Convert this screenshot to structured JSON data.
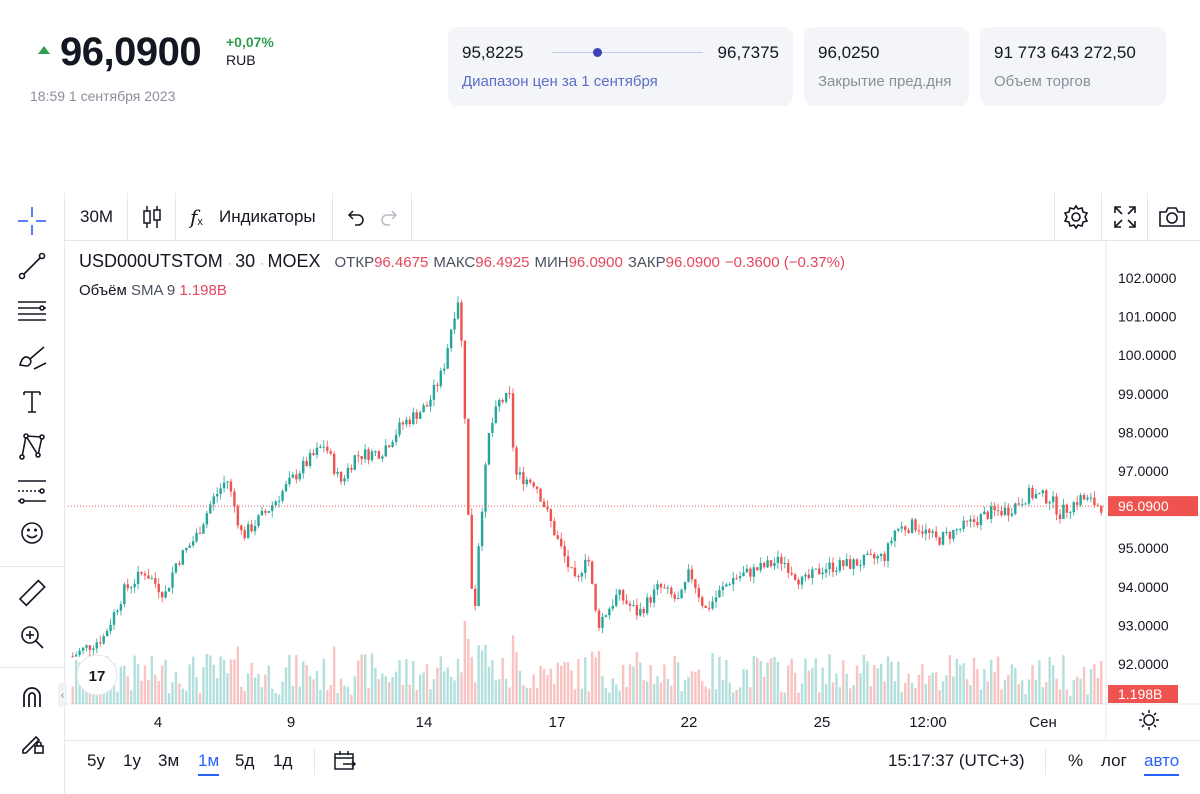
{
  "quote": {
    "price": "96,0900",
    "change": "+0,07%",
    "currency": "RUB",
    "timestamp": "18:59 1 сентября 2023",
    "up_color": "#2e9e4f"
  },
  "range": {
    "low": "95,8225",
    "high": "96,7375",
    "label": "Диапазон цен за 1 сентября",
    "position": 0.3
  },
  "prev_close": {
    "value": "96,0250",
    "label": "Закрытие пред.дня"
  },
  "volume_card": {
    "value": "91 773 643 272,50",
    "label": "Объем торгов"
  },
  "toolbar": {
    "interval": "30M",
    "indicators": "Индикаторы",
    "left_tools": [
      "crosshair-icon",
      "trend-line-icon",
      "fib-icon",
      "brush-icon",
      "text-icon",
      "pattern-icon",
      "projection-icon",
      "emoji-icon",
      "ruler-icon",
      "zoom-in-icon",
      "magnet-icon",
      "lock-draw-icon"
    ]
  },
  "legend": {
    "symbol": "USD000UTSTOM",
    "interval": "30",
    "exchange": "MOEX",
    "open_label": "ОТКР",
    "open": "96.4675",
    "high_label": "МАКС",
    "high": "96.4925",
    "low_label": "МИН",
    "low": "96.0900",
    "close_label": "ЗАКР",
    "close": "96.0900",
    "change": "−0.3600 (−0.37%)",
    "volume_label": "Объём",
    "sma": "SMA 9",
    "volume_value": "1.198B"
  },
  "chart_data": {
    "type": "candlestick",
    "y_ticks": [
      "102.0000",
      "101.0000",
      "100.0000",
      "99.0000",
      "98.0000",
      "97.0000",
      "96.0000",
      "95.0000",
      "94.0000",
      "93.0000",
      "92.0000"
    ],
    "ylim": [
      91.0,
      102.6
    ],
    "x_ticks": [
      "4",
      "9",
      "14",
      "17",
      "22",
      "25",
      "12:00",
      "Сен"
    ],
    "last_price_label": "96.0900",
    "volume_label": "1.198B",
    "up_color": "#26a69a",
    "down_color": "#ef5350",
    "close_path": [
      {
        "t": 0.0,
        "p": 92.2
      },
      {
        "t": 0.03,
        "p": 92.7
      },
      {
        "t": 0.05,
        "p": 93.9
      },
      {
        "t": 0.07,
        "p": 94.4
      },
      {
        "t": 0.09,
        "p": 93.8
      },
      {
        "t": 0.1,
        "p": 94.6
      },
      {
        "t": 0.12,
        "p": 95.3
      },
      {
        "t": 0.135,
        "p": 96.2
      },
      {
        "t": 0.15,
        "p": 96.8
      },
      {
        "t": 0.165,
        "p": 95.3
      },
      {
        "t": 0.19,
        "p": 96.0
      },
      {
        "t": 0.22,
        "p": 97.0
      },
      {
        "t": 0.245,
        "p": 97.7
      },
      {
        "t": 0.26,
        "p": 96.7
      },
      {
        "t": 0.275,
        "p": 97.4
      },
      {
        "t": 0.3,
        "p": 97.5
      },
      {
        "t": 0.32,
        "p": 98.2
      },
      {
        "t": 0.345,
        "p": 98.7
      },
      {
        "t": 0.36,
        "p": 99.6
      },
      {
        "t": 0.37,
        "p": 101.0
      },
      {
        "t": 0.375,
        "p": 101.5
      },
      {
        "t": 0.38,
        "p": 99.5
      },
      {
        "t": 0.385,
        "p": 95.5
      },
      {
        "t": 0.39,
        "p": 93.0
      },
      {
        "t": 0.395,
        "p": 95.3
      },
      {
        "t": 0.405,
        "p": 98.0
      },
      {
        "t": 0.415,
        "p": 98.8
      },
      {
        "t": 0.425,
        "p": 98.9
      },
      {
        "t": 0.43,
        "p": 96.9
      },
      {
        "t": 0.45,
        "p": 96.7
      },
      {
        "t": 0.47,
        "p": 95.3
      },
      {
        "t": 0.49,
        "p": 94.0
      },
      {
        "t": 0.5,
        "p": 95.0
      },
      {
        "t": 0.51,
        "p": 93.0
      },
      {
        "t": 0.53,
        "p": 93.8
      },
      {
        "t": 0.55,
        "p": 93.3
      },
      {
        "t": 0.57,
        "p": 94.0
      },
      {
        "t": 0.59,
        "p": 93.6
      },
      {
        "t": 0.6,
        "p": 94.4
      },
      {
        "t": 0.615,
        "p": 93.4
      },
      {
        "t": 0.64,
        "p": 94.2
      },
      {
        "t": 0.67,
        "p": 94.5
      },
      {
        "t": 0.69,
        "p": 94.7
      },
      {
        "t": 0.71,
        "p": 94.1
      },
      {
        "t": 0.73,
        "p": 94.5
      },
      {
        "t": 0.76,
        "p": 94.6
      },
      {
        "t": 0.79,
        "p": 94.8
      },
      {
        "t": 0.8,
        "p": 95.5
      },
      {
        "t": 0.82,
        "p": 95.6
      },
      {
        "t": 0.84,
        "p": 95.2
      },
      {
        "t": 0.87,
        "p": 95.6
      },
      {
        "t": 0.89,
        "p": 95.9
      },
      {
        "t": 0.91,
        "p": 96.0
      },
      {
        "t": 0.93,
        "p": 96.4
      },
      {
        "t": 0.95,
        "p": 96.3
      },
      {
        "t": 0.96,
        "p": 95.9
      },
      {
        "t": 0.98,
        "p": 96.3
      },
      {
        "t": 1.0,
        "p": 96.09
      }
    ]
  },
  "bottom": {
    "ranges": [
      "5y",
      "1y",
      "3м",
      "1м",
      "5д",
      "1д"
    ],
    "active_range": "1м",
    "time": "15:17:37 (UTC+3)",
    "percent": "%",
    "log": "лог",
    "auto": "авто"
  },
  "colors": {
    "accent": "#2962ff",
    "range_dot": "#3c3fb5"
  }
}
